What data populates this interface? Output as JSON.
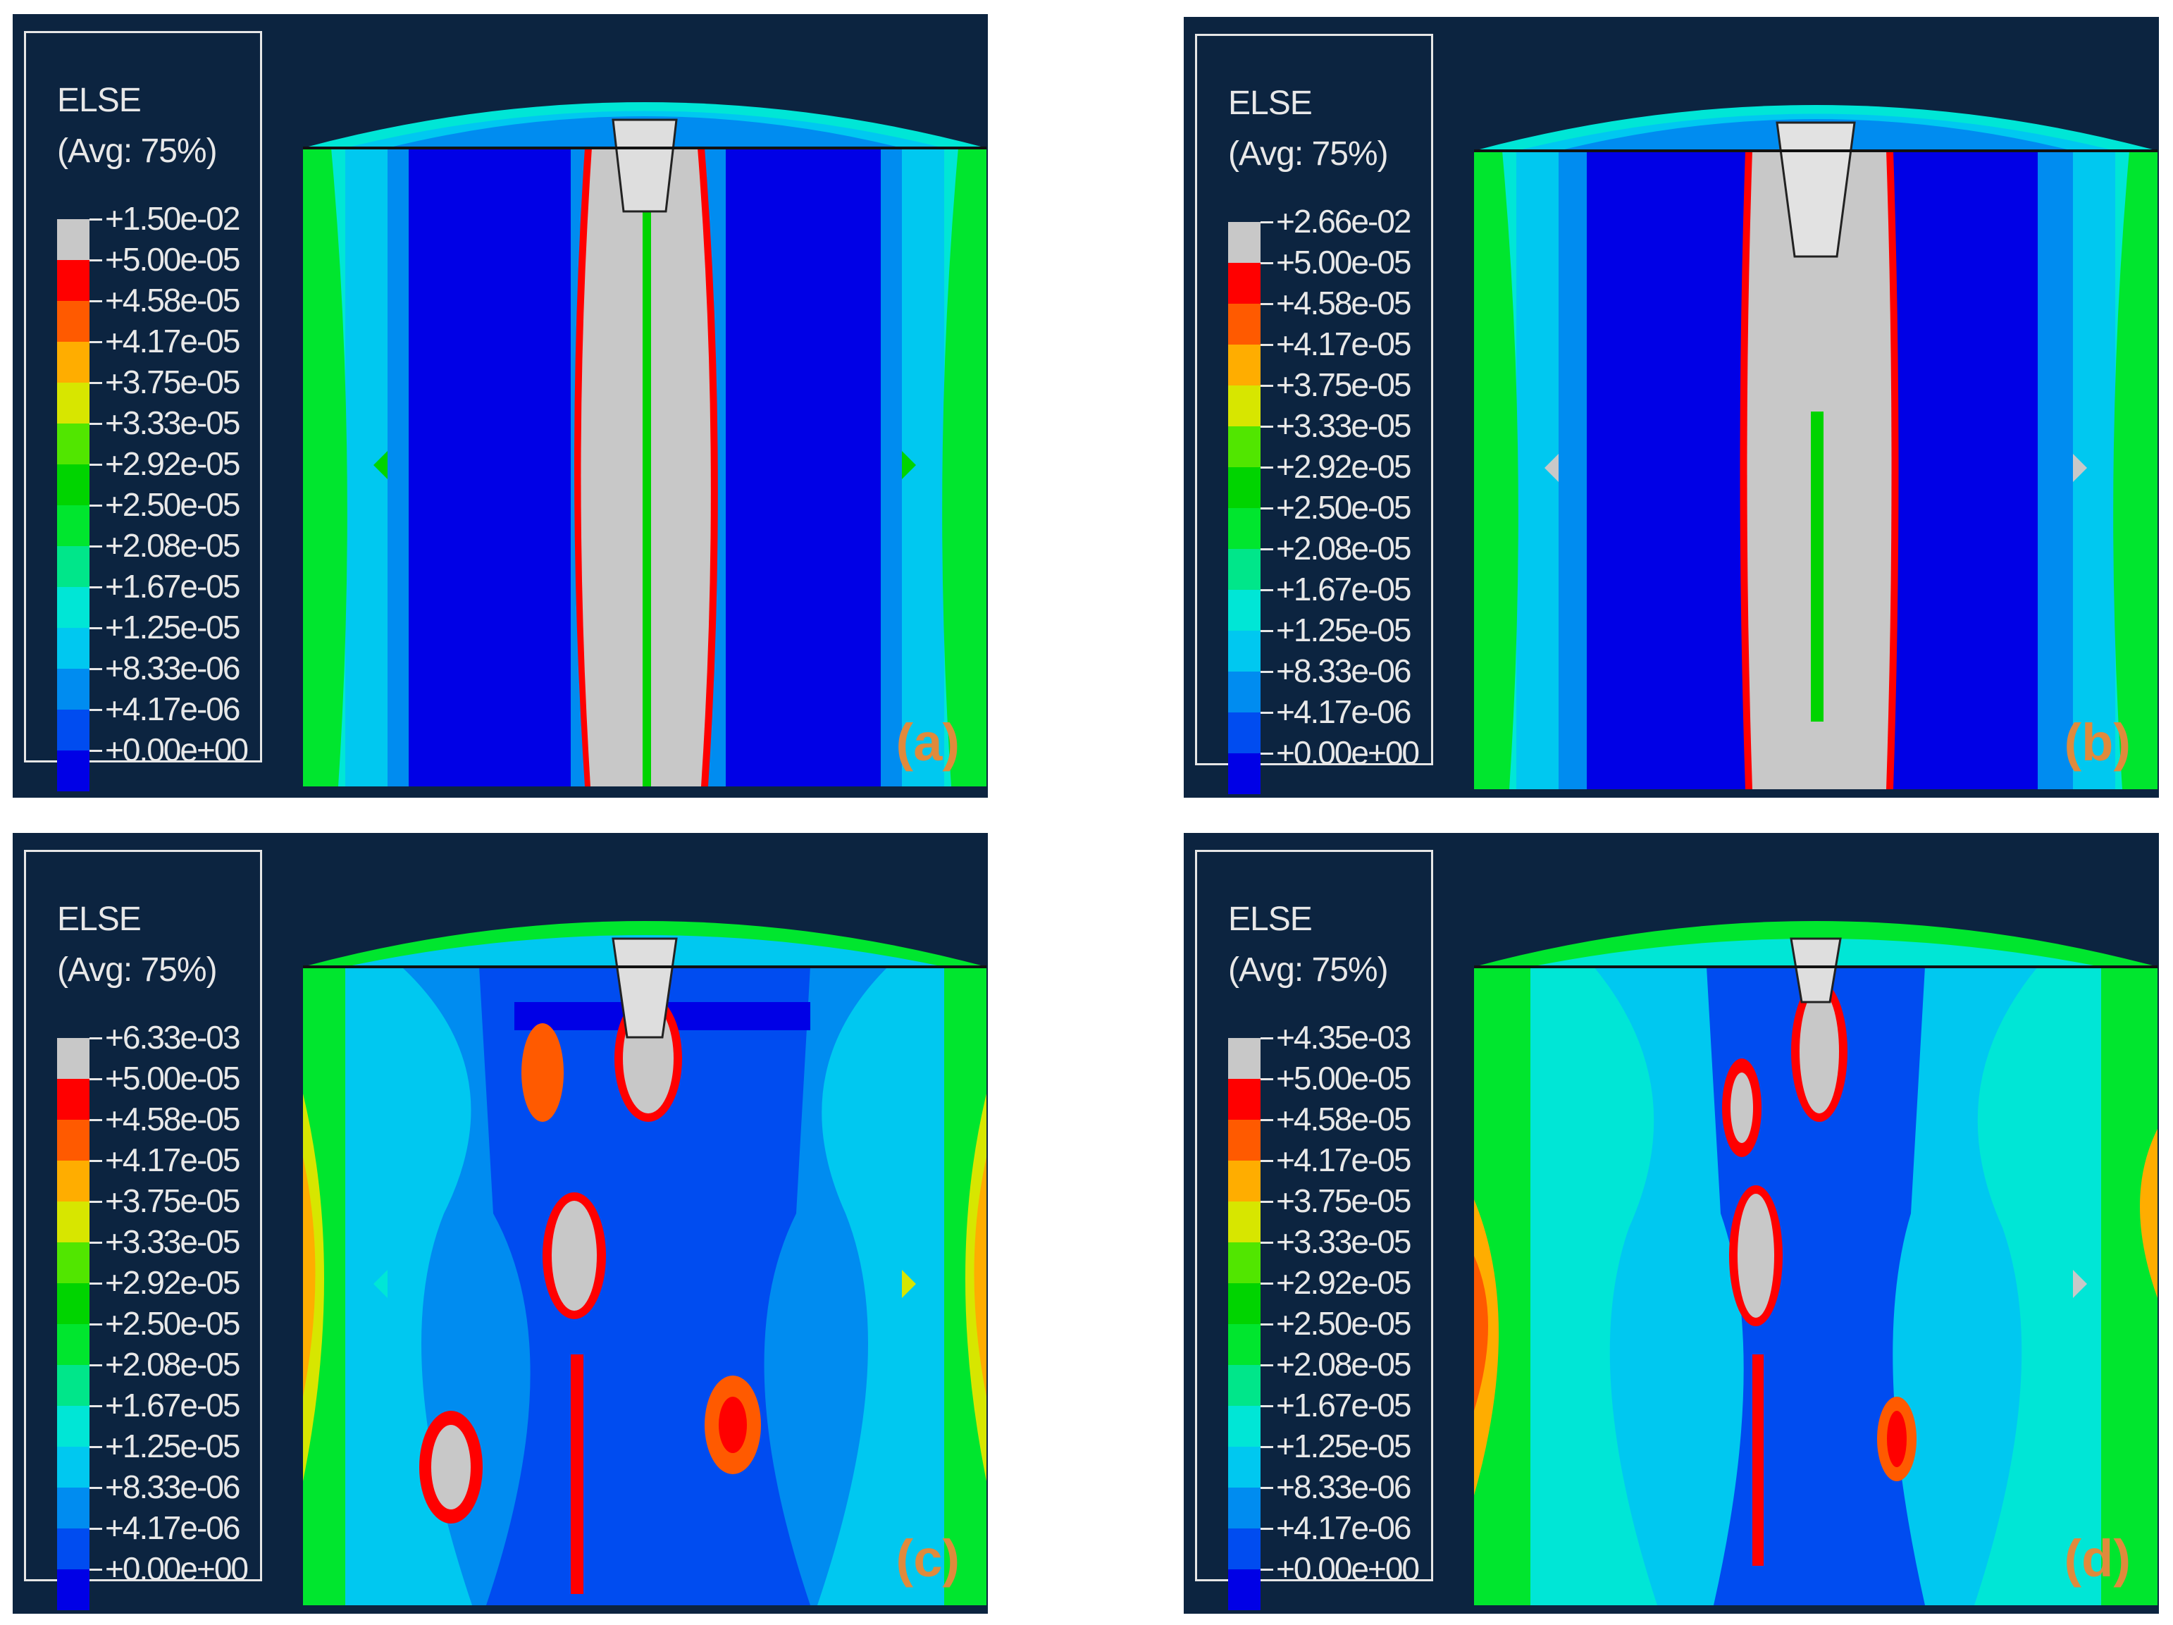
{
  "legend_title": "ELSE",
  "legend_subtitle": "(Avg: 75%)",
  "colors": {
    "background": "#0c2440",
    "scale": [
      "#c8c8c8",
      "#ff0000",
      "#ff5a00",
      "#ffad00",
      "#d7e600",
      "#51e600",
      "#00d400",
      "#00e62e",
      "#00e68a",
      "#00e6d6",
      "#00c8f0",
      "#008cf0",
      "#004cf0",
      "#0000e6"
    ]
  },
  "panels": [
    {
      "tag": "(a)",
      "max": "+1.50e-02",
      "levels": [
        "+1.50e-02",
        "+5.00e-05",
        "+4.58e-05",
        "+4.17e-05",
        "+3.75e-05",
        "+3.33e-05",
        "+2.92e-05",
        "+2.50e-05",
        "+2.08e-05",
        "+1.67e-05",
        "+1.25e-05",
        "+8.33e-06",
        "+4.17e-06",
        "+0.00e+00"
      ]
    },
    {
      "tag": "(b)",
      "max": "+2.66e-02",
      "levels": [
        "+2.66e-02",
        "+5.00e-05",
        "+4.58e-05",
        "+4.17e-05",
        "+3.75e-05",
        "+3.33e-05",
        "+2.92e-05",
        "+2.50e-05",
        "+2.08e-05",
        "+1.67e-05",
        "+1.25e-05",
        "+8.33e-06",
        "+4.17e-06",
        "+0.00e+00"
      ]
    },
    {
      "tag": "(c)",
      "max": "+6.33e-03",
      "levels": [
        "+6.33e-03",
        "+5.00e-05",
        "+4.58e-05",
        "+4.17e-05",
        "+3.75e-05",
        "+3.33e-05",
        "+2.92e-05",
        "+2.50e-05",
        "+2.08e-05",
        "+1.67e-05",
        "+1.25e-05",
        "+8.33e-06",
        "+4.17e-06",
        "+0.00e+00"
      ]
    },
    {
      "tag": "(d)",
      "max": "+4.35e-03",
      "levels": [
        "+4.35e-03",
        "+5.00e-05",
        "+4.58e-05",
        "+4.17e-05",
        "+3.75e-05",
        "+3.33e-05",
        "+2.92e-05",
        "+2.50e-05",
        "+2.08e-05",
        "+1.67e-05",
        "+1.25e-05",
        "+8.33e-06",
        "+4.17e-06",
        "+0.00e+00"
      ]
    }
  ]
}
